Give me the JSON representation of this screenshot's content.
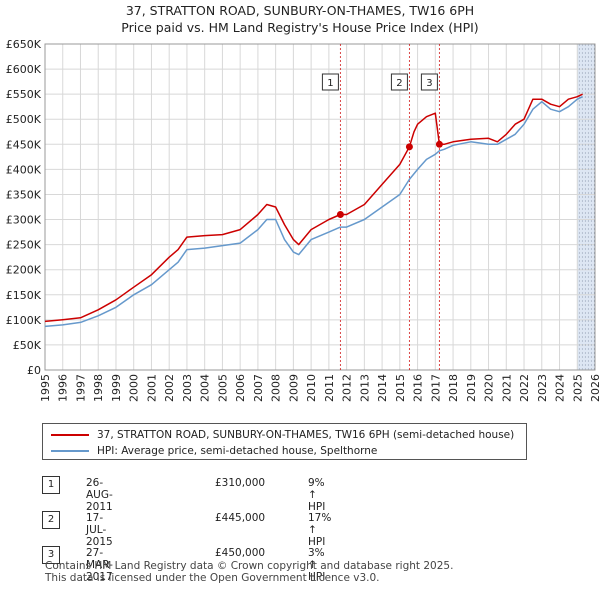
{
  "title_line1": "37, STRATTON ROAD, SUNBURY-ON-THAMES, TW16 6PH",
  "title_line2": "Price paid vs. HM Land Registry's House Price Index (HPI)",
  "colors": {
    "property": "#cc0000",
    "hpi": "#6699cc",
    "shade": "#dde6f3",
    "grid": "#d8d8d8"
  },
  "legend": {
    "property_label": "37, STRATTON ROAD, SUNBURY-ON-THAMES, TW16 6PH (semi-detached house)",
    "hpi_label": "HPI: Average price, semi-detached house, Spelthorne"
  },
  "sales": [
    {
      "num": "1",
      "date": "26-AUG-2011",
      "price": "£310,000",
      "hpi": "9% ↑ HPI"
    },
    {
      "num": "2",
      "date": "17-JUL-2015",
      "price": "£445,000",
      "hpi": "17% ↑ HPI"
    },
    {
      "num": "3",
      "date": "27-MAR-2017",
      "price": "£450,000",
      "hpi": "3% ↑ HPI"
    }
  ],
  "footer_line1": "Contains HM Land Registry data © Crown copyright and database right 2025.",
  "footer_line2": "This data is licensed under the Open Government Licence v3.0.",
  "chart_data": {
    "type": "line",
    "title": "37, STRATTON ROAD, SUNBURY-ON-THAMES, TW16 6PH",
    "subtitle": "Price paid vs. HM Land Registry's House Price Index (HPI)",
    "xlabel": "",
    "ylabel": "",
    "xlim": [
      1995,
      2026
    ],
    "ylim": [
      0,
      650000
    ],
    "x_ticks": [
      1995,
      1996,
      1997,
      1998,
      1999,
      2000,
      2001,
      2002,
      2003,
      2004,
      2005,
      2006,
      2007,
      2008,
      2009,
      2010,
      2011,
      2012,
      2013,
      2014,
      2015,
      2016,
      2017,
      2018,
      2019,
      2020,
      2021,
      2022,
      2023,
      2024,
      2025,
      2026
    ],
    "y_ticks": [
      0,
      50000,
      100000,
      150000,
      200000,
      250000,
      300000,
      350000,
      400000,
      450000,
      500000,
      550000,
      600000,
      650000
    ],
    "y_tick_labels": [
      "£0",
      "£50K",
      "£100K",
      "£150K",
      "£200K",
      "£250K",
      "£300K",
      "£350K",
      "£400K",
      "£450K",
      "£500K",
      "£550K",
      "£600K",
      "£650K"
    ],
    "grid": true,
    "future_shade_from": 2025.0,
    "series": [
      {
        "name": "37, STRATTON ROAD, SUNBURY-ON-THAMES, TW16 6PH (semi-detached house)",
        "x": [
          1995,
          1996,
          1997,
          1998,
          1999,
          2000,
          2001,
          2002,
          2002.5,
          2003,
          2004,
          2005,
          2006,
          2007,
          2007.5,
          2008,
          2008.5,
          2009,
          2009.3,
          2010,
          2011,
          2011.65,
          2012,
          2013,
          2014,
          2015,
          2015.54,
          2015.8,
          2016,
          2016.5,
          2017.0,
          2017.23,
          2017.5,
          2018,
          2019,
          2020,
          2020.5,
          2021,
          2021.5,
          2022,
          2022.5,
          2023,
          2023.5,
          2024,
          2024.5,
          2025,
          2025.3
        ],
        "y": [
          97000,
          100000,
          104000,
          120000,
          140000,
          165000,
          190000,
          225000,
          240000,
          265000,
          268000,
          270000,
          280000,
          310000,
          330000,
          325000,
          290000,
          260000,
          250000,
          280000,
          300000,
          310000,
          310000,
          330000,
          370000,
          410000,
          445000,
          475000,
          490000,
          505000,
          512000,
          450000,
          450000,
          455000,
          460000,
          462000,
          455000,
          470000,
          490000,
          500000,
          540000,
          540000,
          530000,
          525000,
          540000,
          545000,
          550000
        ]
      },
      {
        "name": "HPI: Average price, semi-detached house, Spelthorne",
        "x": [
          1995,
          1996,
          1997,
          1998,
          1999,
          2000,
          2001,
          2002,
          2002.5,
          2003,
          2004,
          2005,
          2006,
          2007,
          2007.5,
          2008,
          2008.5,
          2009,
          2009.3,
          2010,
          2011,
          2011.65,
          2012,
          2013,
          2014,
          2015,
          2015.54,
          2016,
          2016.5,
          2017,
          2017.23,
          2017.5,
          2018,
          2019,
          2020,
          2020.5,
          2021,
          2021.5,
          2022,
          2022.5,
          2023,
          2023.5,
          2024,
          2024.5,
          2025,
          2025.3
        ],
        "y": [
          87000,
          90000,
          95000,
          108000,
          125000,
          150000,
          170000,
          200000,
          215000,
          240000,
          243000,
          248000,
          253000,
          280000,
          300000,
          300000,
          260000,
          235000,
          230000,
          260000,
          275000,
          285000,
          285000,
          300000,
          325000,
          350000,
          380000,
          400000,
          420000,
          430000,
          437000,
          440000,
          448000,
          455000,
          450000,
          450000,
          460000,
          470000,
          490000,
          520000,
          535000,
          520000,
          515000,
          525000,
          540000,
          545000
        ]
      }
    ],
    "sale_markers": [
      {
        "label": "1",
        "x": 2011.65,
        "y": 310000
      },
      {
        "label": "2",
        "x": 2015.54,
        "y": 445000
      },
      {
        "label": "3",
        "x": 2017.23,
        "y": 450000
      }
    ]
  }
}
